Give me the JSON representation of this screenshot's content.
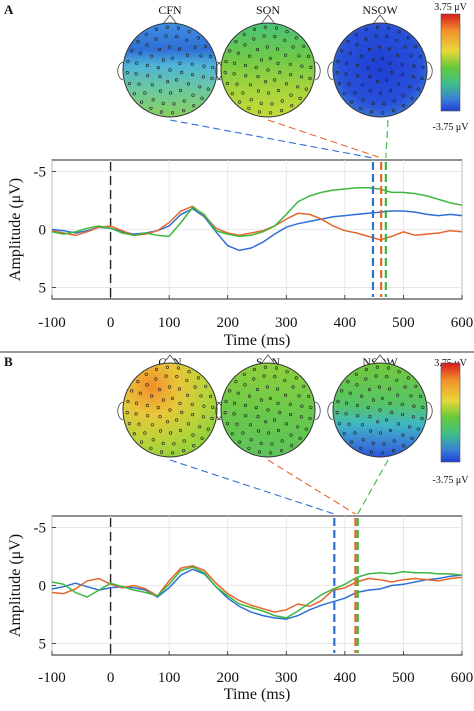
{
  "panels": [
    {
      "label": "A",
      "topomaps": [
        {
          "name": "CFN",
          "pattern": "A-CFN"
        },
        {
          "name": "SON",
          "pattern": "A-SON"
        },
        {
          "name": "NSOW",
          "pattern": "A-NSOW"
        }
      ],
      "colorbar": {
        "max_label": "3.75 μV",
        "min_label": "-3.75 μV",
        "colors": [
          "#d7191c",
          "#f28e2b",
          "#e8d83a",
          "#66c93a",
          "#3dbf8a",
          "#3a7fd6",
          "#1f3fd6"
        ]
      },
      "series_colors": {
        "CFN": "#2f6fd6",
        "SON": "#e4662c",
        "NSOW": "#3cb83c"
      }
    },
    {
      "label": "B",
      "topomaps": [
        {
          "name": "CFN",
          "pattern": "B-CFN"
        },
        {
          "name": "SON",
          "pattern": "B-SON"
        },
        {
          "name": "NSOW",
          "pattern": "B-NSOW"
        }
      ],
      "colorbar": {
        "max_label": "3.75 μV",
        "min_label": "-3.75 μV",
        "colors": [
          "#d7191c",
          "#f28e2b",
          "#e8d83a",
          "#66c93a",
          "#3dbf8a",
          "#3a7fd6",
          "#1f3fd6"
        ]
      },
      "series_colors": {
        "CFN": "#2f6fd6",
        "SON": "#e4662c",
        "NSOW": "#3cb83c"
      }
    }
  ],
  "chart_data": [
    {
      "type": "line",
      "panel": "A",
      "xlabel": "Time (ms)",
      "ylabel": "Amplitude (μV)",
      "xlim": [
        -100,
        600
      ],
      "ylim": [
        -6,
        6
      ],
      "y_inverted": true,
      "xticks": [
        "-100",
        "0",
        "100",
        "200",
        "300",
        "400",
        "500",
        "600"
      ],
      "yticks": [
        "-5",
        "0",
        "5"
      ],
      "grid": true,
      "stimulus_onset": 0,
      "peak_markers": [
        {
          "series": "CFN",
          "x": 448
        },
        {
          "series": "SON",
          "x": 462
        },
        {
          "series": "NSOW",
          "x": 470
        }
      ],
      "series": [
        {
          "name": "CFN",
          "x": [
            -100,
            -80,
            -60,
            -40,
            -20,
            0,
            20,
            40,
            60,
            80,
            100,
            120,
            140,
            160,
            180,
            200,
            220,
            240,
            260,
            280,
            300,
            320,
            340,
            360,
            380,
            400,
            420,
            440,
            460,
            480,
            500,
            520,
            540,
            560,
            580,
            600
          ],
          "values": [
            0,
            0.1,
            0.3,
            0.1,
            -0.2,
            -0.1,
            0.2,
            0.4,
            0.3,
            0.1,
            -0.3,
            -1.3,
            -1.8,
            -1.1,
            0.2,
            1.4,
            1.8,
            1.6,
            1.1,
            0.4,
            -0.2,
            -0.5,
            -0.7,
            -0.9,
            -1.1,
            -1.2,
            -1.3,
            -1.4,
            -1.5,
            -1.6,
            -1.6,
            -1.5,
            -1.3,
            -1.2,
            -1.3,
            -1.2
          ]
        },
        {
          "name": "SON",
          "x": [
            -100,
            -80,
            -60,
            -40,
            -20,
            0,
            20,
            40,
            60,
            80,
            100,
            120,
            140,
            160,
            180,
            200,
            220,
            240,
            260,
            280,
            300,
            320,
            340,
            360,
            380,
            400,
            420,
            440,
            460,
            480,
            500,
            520,
            540,
            560,
            580,
            600
          ],
          "values": [
            0.1,
            0.3,
            0.5,
            0.2,
            -0.2,
            -0.3,
            0.1,
            0.5,
            0.4,
            0.1,
            -0.6,
            -1.6,
            -2.0,
            -1.2,
            -0.1,
            0.3,
            0.5,
            0.3,
            0.1,
            -0.3,
            -0.9,
            -1.4,
            -1.3,
            -0.9,
            -0.3,
            0.1,
            0.3,
            0.6,
            0.9,
            0.6,
            0.2,
            0.5,
            0.4,
            0.3,
            0.1,
            0.2
          ]
        },
        {
          "name": "NSOW",
          "x": [
            -100,
            -80,
            -60,
            -40,
            -20,
            0,
            20,
            40,
            60,
            80,
            100,
            120,
            140,
            160,
            180,
            200,
            220,
            240,
            260,
            280,
            300,
            320,
            340,
            360,
            380,
            400,
            420,
            440,
            460,
            480,
            500,
            520,
            540,
            560,
            580,
            600
          ],
          "values": [
            0.2,
            0.4,
            0.2,
            -0.1,
            -0.3,
            -0.1,
            0.3,
            0.5,
            0.3,
            0.5,
            0.6,
            -0.6,
            -1.9,
            -1.3,
            0.1,
            0.4,
            0.6,
            0.5,
            0.2,
            -0.3,
            -1.3,
            -2.4,
            -2.9,
            -3.2,
            -3.4,
            -3.5,
            -3.6,
            -3.6,
            -3.5,
            -3.2,
            -3.2,
            -3.1,
            -2.9,
            -2.6,
            -2.3,
            -2.1
          ]
        }
      ]
    },
    {
      "type": "line",
      "panel": "B",
      "xlabel": "Time (ms)",
      "ylabel": "Amplitude (μV)",
      "xlim": [
        -100,
        600
      ],
      "ylim": [
        -6,
        6
      ],
      "y_inverted": true,
      "xticks": [
        "-100",
        "0",
        "100",
        "200",
        "300",
        "400",
        "500",
        "600"
      ],
      "yticks": [
        "-5",
        "0",
        "5"
      ],
      "grid": true,
      "stimulus_onset": 0,
      "peak_markers": [
        {
          "series": "CFN",
          "x": 382
        },
        {
          "series": "SON",
          "x": 418
        },
        {
          "series": "NSOW",
          "x": 422
        }
      ],
      "series": [
        {
          "name": "CFN",
          "x": [
            -100,
            -80,
            -60,
            -40,
            -20,
            0,
            20,
            40,
            60,
            80,
            100,
            120,
            140,
            160,
            180,
            200,
            220,
            240,
            260,
            280,
            300,
            320,
            340,
            360,
            380,
            400,
            420,
            440,
            460,
            480,
            500,
            520,
            540,
            560,
            580,
            600
          ],
          "values": [
            0.3,
            0.1,
            -0.2,
            0.1,
            0.4,
            0.2,
            0.1,
            0.2,
            0.4,
            1.0,
            0.2,
            -0.9,
            -1.4,
            -1.0,
            0.1,
            1.1,
            1.8,
            2.3,
            2.6,
            2.8,
            2.9,
            2.6,
            2.1,
            1.7,
            1.4,
            1.1,
            0.6,
            0.4,
            0.3,
            0.0,
            -0.1,
            -0.3,
            -0.5,
            -0.6,
            -0.8,
            -0.9
          ]
        },
        {
          "name": "SON",
          "x": [
            -100,
            -80,
            -60,
            -40,
            -20,
            0,
            20,
            40,
            60,
            80,
            100,
            120,
            140,
            160,
            180,
            200,
            220,
            240,
            260,
            280,
            300,
            320,
            340,
            360,
            380,
            400,
            420,
            440,
            460,
            480,
            500,
            520,
            540,
            560,
            580,
            600
          ],
          "values": [
            0.6,
            0.7,
            0.3,
            -0.4,
            -0.6,
            -0.1,
            0.2,
            0.0,
            0.3,
            0.9,
            -0.4,
            -1.5,
            -1.7,
            -1.3,
            -0.2,
            0.7,
            1.3,
            1.7,
            2.0,
            2.3,
            2.1,
            1.6,
            1.8,
            1.3,
            0.4,
            0.2,
            -0.3,
            -0.6,
            -0.5,
            -0.3,
            -0.5,
            -0.6,
            -0.5,
            -0.4,
            -0.6,
            -0.7
          ]
        },
        {
          "name": "NSOW",
          "x": [
            -100,
            -80,
            -60,
            -40,
            -20,
            0,
            20,
            40,
            60,
            80,
            100,
            120,
            140,
            160,
            180,
            200,
            220,
            240,
            260,
            280,
            300,
            320,
            340,
            360,
            380,
            400,
            420,
            440,
            460,
            480,
            500,
            520,
            540,
            560,
            580,
            600
          ],
          "values": [
            -0.3,
            -0.1,
            0.6,
            1.0,
            0.4,
            -0.2,
            0.1,
            0.4,
            0.6,
            0.9,
            -0.1,
            -1.3,
            -1.6,
            -1.1,
            0.1,
            0.9,
            1.6,
            1.9,
            2.2,
            2.6,
            2.8,
            2.2,
            1.5,
            0.8,
            0.3,
            -0.1,
            -0.7,
            -1.0,
            -1.1,
            -1.0,
            -1.2,
            -1.1,
            -1.1,
            -1.0,
            -1.0,
            -0.9
          ]
        }
      ]
    }
  ]
}
